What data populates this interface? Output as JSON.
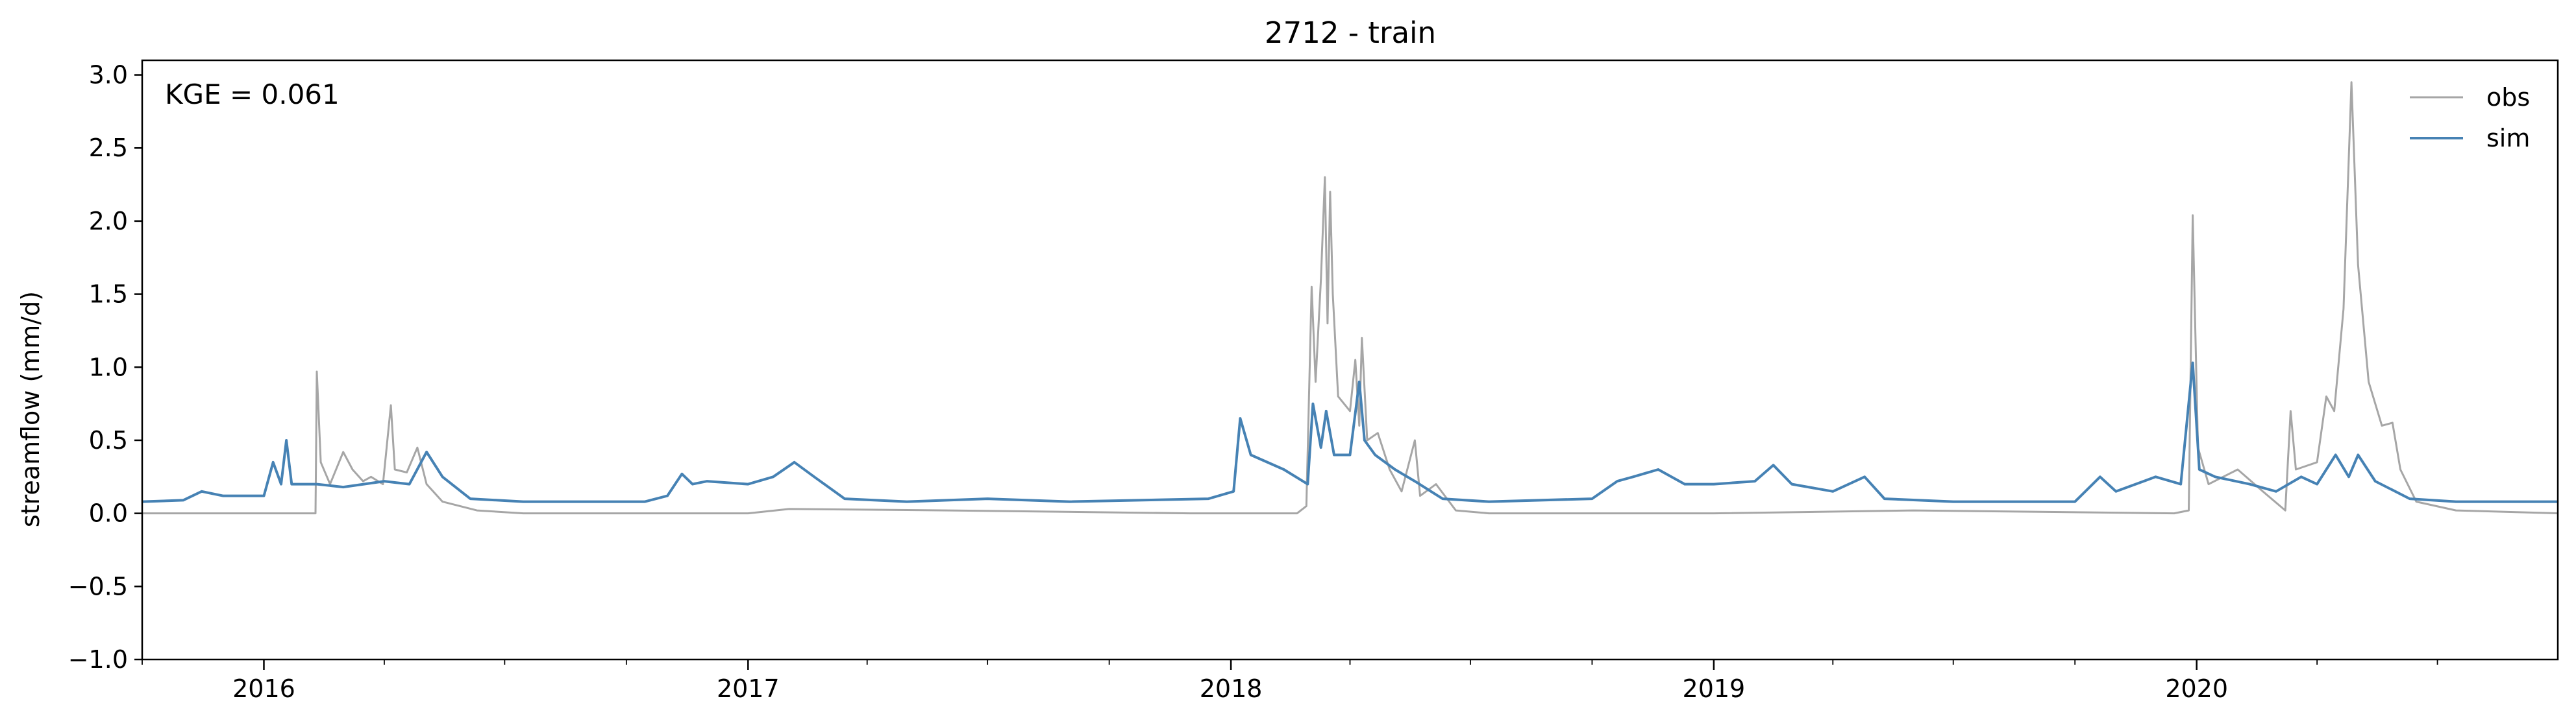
{
  "chart_data": {
    "type": "line",
    "title": "2712 - train",
    "xlabel": "",
    "ylabel": "streamflow (mm/d)",
    "annotation": "KGE = 0.061",
    "xlim": [
      "2015-10-01",
      "2020-09-30"
    ],
    "ylim": [
      -1.0,
      3.1
    ],
    "yticks": [
      -1.0,
      -0.5,
      0.0,
      0.5,
      1.0,
      1.5,
      2.0,
      2.5,
      3.0
    ],
    "ytick_labels": [
      "−1.0",
      "−0.5",
      "0.0",
      "0.5",
      "1.0",
      "1.5",
      "2.0",
      "2.5",
      "3.0"
    ],
    "xticks": [
      "2016-01-01",
      "2017-01-01",
      "2018-01-01",
      "2019-01-01",
      "2020-01-01"
    ],
    "xtick_labels": [
      "2016",
      "2017",
      "2018",
      "2019",
      "2020"
    ],
    "grid": false,
    "legend_position": "top-right",
    "series": [
      {
        "name": "obs",
        "color": "#a6a6a6",
        "points": [
          [
            "2015-10-01",
            0.0
          ],
          [
            "2015-12-15",
            0.0
          ],
          [
            "2016-02-09",
            0.0
          ],
          [
            "2016-02-10",
            0.97
          ],
          [
            "2016-02-13",
            0.35
          ],
          [
            "2016-02-20",
            0.2
          ],
          [
            "2016-03-01",
            0.42
          ],
          [
            "2016-03-08",
            0.3
          ],
          [
            "2016-03-16",
            0.22
          ],
          [
            "2016-03-22",
            0.25
          ],
          [
            "2016-03-31",
            0.2
          ],
          [
            "2016-04-06",
            0.74
          ],
          [
            "2016-04-09",
            0.3
          ],
          [
            "2016-04-18",
            0.28
          ],
          [
            "2016-04-26",
            0.45
          ],
          [
            "2016-05-03",
            0.2
          ],
          [
            "2016-05-15",
            0.08
          ],
          [
            "2016-06-10",
            0.02
          ],
          [
            "2016-07-15",
            0.0
          ],
          [
            "2017-01-01",
            0.0
          ],
          [
            "2017-02-01",
            0.03
          ],
          [
            "2017-06-01",
            0.02
          ],
          [
            "2017-12-01",
            0.0
          ],
          [
            "2018-02-20",
            0.0
          ],
          [
            "2018-02-27",
            0.05
          ],
          [
            "2018-03-03",
            1.55
          ],
          [
            "2018-03-06",
            0.9
          ],
          [
            "2018-03-10",
            1.6
          ],
          [
            "2018-03-13",
            2.3
          ],
          [
            "2018-03-15",
            1.3
          ],
          [
            "2018-03-17",
            2.2
          ],
          [
            "2018-03-19",
            1.5
          ],
          [
            "2018-03-23",
            0.8
          ],
          [
            "2018-04-01",
            0.7
          ],
          [
            "2018-04-05",
            1.05
          ],
          [
            "2018-04-08",
            0.6
          ],
          [
            "2018-04-10",
            1.2
          ],
          [
            "2018-04-14",
            0.5
          ],
          [
            "2018-04-22",
            0.55
          ],
          [
            "2018-05-01",
            0.3
          ],
          [
            "2018-05-10",
            0.15
          ],
          [
            "2018-05-20",
            0.5
          ],
          [
            "2018-05-24",
            0.12
          ],
          [
            "2018-06-05",
            0.2
          ],
          [
            "2018-06-20",
            0.02
          ],
          [
            "2018-07-15",
            0.0
          ],
          [
            "2019-01-01",
            0.0
          ],
          [
            "2019-06-01",
            0.02
          ],
          [
            "2019-12-15",
            0.0
          ],
          [
            "2019-12-26",
            0.02
          ],
          [
            "2019-12-29",
            2.04
          ],
          [
            "2020-01-02",
            0.45
          ],
          [
            "2020-01-10",
            0.2
          ],
          [
            "2020-02-01",
            0.3
          ],
          [
            "2020-02-20",
            0.15
          ],
          [
            "2020-03-08",
            0.02
          ],
          [
            "2020-03-12",
            0.7
          ],
          [
            "2020-03-16",
            0.3
          ],
          [
            "2020-04-01",
            0.35
          ],
          [
            "2020-04-08",
            0.8
          ],
          [
            "2020-04-14",
            0.7
          ],
          [
            "2020-04-21",
            1.4
          ],
          [
            "2020-04-27",
            2.95
          ],
          [
            "2020-05-02",
            1.7
          ],
          [
            "2020-05-10",
            0.9
          ],
          [
            "2020-05-20",
            0.6
          ],
          [
            "2020-05-28",
            0.62
          ],
          [
            "2020-06-03",
            0.3
          ],
          [
            "2020-06-15",
            0.08
          ],
          [
            "2020-07-15",
            0.02
          ],
          [
            "2020-09-30",
            0.0
          ]
        ]
      },
      {
        "name": "sim",
        "color": "#4682b4",
        "points": [
          [
            "2015-10-01",
            0.08
          ],
          [
            "2015-11-01",
            0.09
          ],
          [
            "2015-11-15",
            0.15
          ],
          [
            "2015-12-01",
            0.12
          ],
          [
            "2016-01-01",
            0.12
          ],
          [
            "2016-01-08",
            0.35
          ],
          [
            "2016-01-14",
            0.2
          ],
          [
            "2016-01-18",
            0.5
          ],
          [
            "2016-01-22",
            0.2
          ],
          [
            "2016-02-10",
            0.2
          ],
          [
            "2016-03-01",
            0.18
          ],
          [
            "2016-04-01",
            0.22
          ],
          [
            "2016-04-20",
            0.2
          ],
          [
            "2016-05-03",
            0.42
          ],
          [
            "2016-05-15",
            0.25
          ],
          [
            "2016-06-05",
            0.1
          ],
          [
            "2016-07-15",
            0.08
          ],
          [
            "2016-10-15",
            0.08
          ],
          [
            "2016-11-01",
            0.12
          ],
          [
            "2016-11-12",
            0.27
          ],
          [
            "2016-11-20",
            0.2
          ],
          [
            "2016-12-01",
            0.22
          ],
          [
            "2017-01-01",
            0.2
          ],
          [
            "2017-01-20",
            0.25
          ],
          [
            "2017-02-05",
            0.35
          ],
          [
            "2017-02-20",
            0.25
          ],
          [
            "2017-03-15",
            0.1
          ],
          [
            "2017-05-01",
            0.08
          ],
          [
            "2017-07-01",
            0.1
          ],
          [
            "2017-09-01",
            0.08
          ],
          [
            "2017-12-15",
            0.1
          ],
          [
            "2018-01-03",
            0.15
          ],
          [
            "2018-01-08",
            0.65
          ],
          [
            "2018-01-16",
            0.4
          ],
          [
            "2018-02-10",
            0.3
          ],
          [
            "2018-02-28",
            0.2
          ],
          [
            "2018-03-04",
            0.75
          ],
          [
            "2018-03-10",
            0.45
          ],
          [
            "2018-03-14",
            0.7
          ],
          [
            "2018-03-20",
            0.4
          ],
          [
            "2018-04-01",
            0.4
          ],
          [
            "2018-04-08",
            0.9
          ],
          [
            "2018-04-12",
            0.5
          ],
          [
            "2018-04-20",
            0.4
          ],
          [
            "2018-05-05",
            0.3
          ],
          [
            "2018-05-20",
            0.22
          ],
          [
            "2018-06-10",
            0.1
          ],
          [
            "2018-07-15",
            0.08
          ],
          [
            "2018-10-01",
            0.1
          ],
          [
            "2018-10-20",
            0.22
          ],
          [
            "2018-11-01",
            0.25
          ],
          [
            "2018-11-20",
            0.3
          ],
          [
            "2018-12-10",
            0.2
          ],
          [
            "2019-01-01",
            0.2
          ],
          [
            "2019-02-01",
            0.22
          ],
          [
            "2019-02-15",
            0.33
          ],
          [
            "2019-03-01",
            0.2
          ],
          [
            "2019-04-01",
            0.15
          ],
          [
            "2019-04-25",
            0.25
          ],
          [
            "2019-05-10",
            0.1
          ],
          [
            "2019-07-01",
            0.08
          ],
          [
            "2019-10-01",
            0.08
          ],
          [
            "2019-10-20",
            0.25
          ],
          [
            "2019-11-01",
            0.15
          ],
          [
            "2019-12-01",
            0.25
          ],
          [
            "2019-12-20",
            0.2
          ],
          [
            "2019-12-29",
            1.03
          ],
          [
            "2020-01-03",
            0.3
          ],
          [
            "2020-01-15",
            0.25
          ],
          [
            "2020-02-10",
            0.2
          ],
          [
            "2020-03-01",
            0.15
          ],
          [
            "2020-03-20",
            0.25
          ],
          [
            "2020-04-01",
            0.2
          ],
          [
            "2020-04-15",
            0.4
          ],
          [
            "2020-04-25",
            0.25
          ],
          [
            "2020-05-02",
            0.4
          ],
          [
            "2020-05-15",
            0.22
          ],
          [
            "2020-06-10",
            0.1
          ],
          [
            "2020-07-15",
            0.08
          ],
          [
            "2020-09-30",
            0.08
          ]
        ]
      }
    ]
  }
}
